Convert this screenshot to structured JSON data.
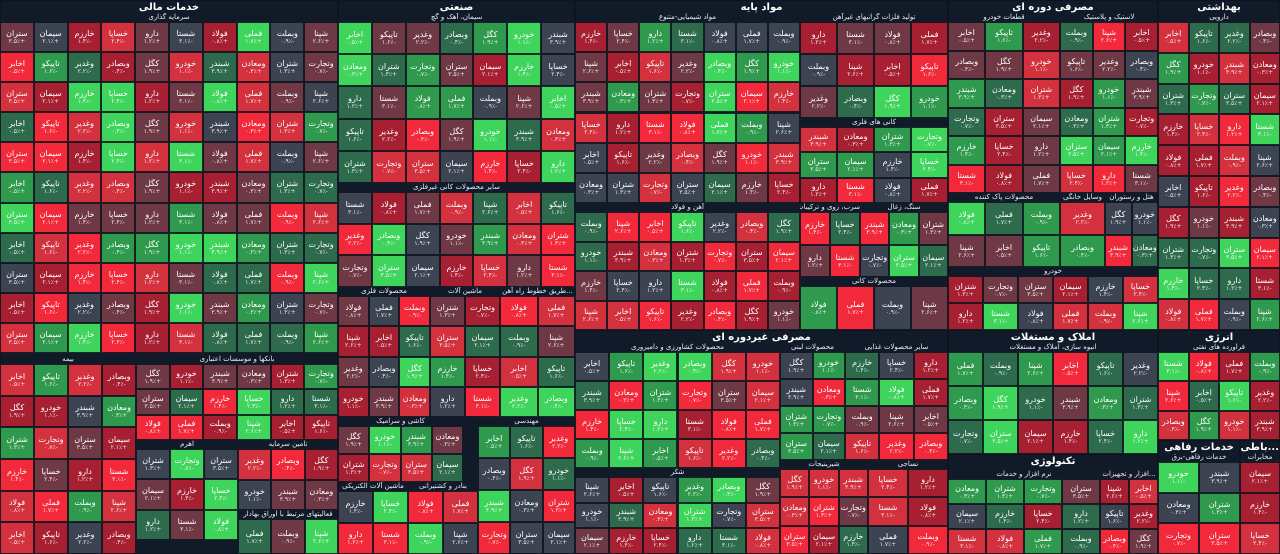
{
  "colors": {
    "dark_red": "#a62032",
    "red": "#d4313f",
    "bright_red": "#f2293a",
    "muted_red": "#6e3844",
    "neutral": "#3c4452",
    "muted_green": "#2d6b4c",
    "green": "#2f9a4d",
    "bright_green": "#3fd45c"
  },
  "sectors": [
    {
      "id": "khadamat-mali",
      "title": "خدمات مالی"
    },
    {
      "id": "sanati",
      "title": "صنعتی"
    },
    {
      "id": "mavad-payeh",
      "title": "مواد پایه"
    },
    {
      "id": "masrafi-dore",
      "title": "مصرفی دوره ای"
    },
    {
      "id": "behdashti",
      "title": "بهداشتی"
    },
    {
      "id": "masrafi-gheir",
      "title": "مصرفی غیردوره ای"
    },
    {
      "id": "amlak",
      "title": "املاک و مستغلات"
    },
    {
      "id": "energy",
      "title": "انرژی"
    },
    {
      "id": "tech",
      "title": "تکنولوژی"
    },
    {
      "id": "refahi",
      "title": "خدمات رفاهی"
    },
    {
      "id": "khadamat-mo",
      "title": "...باطی"
    }
  ],
  "subgroups": [
    {
      "id": "sarmaye-gozari",
      "label": "سرمایه گذاری"
    },
    {
      "id": "bimeh",
      "label": "بیمه"
    },
    {
      "id": "bank",
      "label": "بانکها و موسسات اعتباری"
    },
    {
      "id": "tamin-sarmaye",
      "label": "تامین سرمایه"
    },
    {
      "id": "ahrom",
      "label": "اهرم"
    },
    {
      "id": "oraq",
      "label": "فعالیتهای مرتبط با اوراق بهادار"
    },
    {
      "id": "siman",
      "label": "سیمان، آهک و گچ"
    },
    {
      "id": "kani-gheir",
      "label": "سایر محصولات کانی غیرفلزی"
    },
    {
      "id": "felezi",
      "label": "محصولات فلزی"
    },
    {
      "id": "mashin",
      "label": "ماشین آلات"
    },
    {
      "id": "tarigh",
      "label": "...طریق خطوط راه آهن"
    },
    {
      "id": "kashi",
      "label": "کاشی و سرامیک"
    },
    {
      "id": "bargh",
      "label": "ماشین آلات الکتریکی"
    },
    {
      "id": "bandar",
      "label": "بنادر و کشتیرانی"
    },
    {
      "id": "mohandesi",
      "label": "مهندسی"
    },
    {
      "id": "shimi",
      "label": "مواد شیمیایی-متنوع"
    },
    {
      "id": "tolid-felezat",
      "label": "تولید فلزات گرانبهای غیرآهن"
    },
    {
      "id": "kani-felezi",
      "label": "کانی های فلزی"
    },
    {
      "id": "ahan",
      "label": "آهن و فولاد"
    },
    {
      "id": "sang",
      "label": "سنگ، زغال"
    },
    {
      "id": "sorb",
      "label": "سرب، روی و ترکیبات آنها"
    },
    {
      "id": "kaneh",
      "label": "محصولات کانی"
    },
    {
      "id": "khodro",
      "label": "قطعات خودرو"
    },
    {
      "id": "lastik",
      "label": "لاستیک و پلاستیک"
    },
    {
      "id": "pak",
      "label": "محصولات پاک کننده"
    },
    {
      "id": "khanegi",
      "label": "وسایل خانگی"
    },
    {
      "id": "hotel",
      "label": "هتل و رستوران"
    },
    {
      "id": "khodro2",
      "label": "خودرو"
    },
    {
      "id": "daroei",
      "label": "دارویی"
    },
    {
      "id": "keshavarzi",
      "label": "محصولات کشاورزی و دامپروری"
    },
    {
      "id": "labani",
      "label": "محصولات لبنی"
    },
    {
      "id": "ghazaei",
      "label": "سایر محصولات غذایی"
    },
    {
      "id": "shirini",
      "label": "شیرینیجات"
    },
    {
      "id": "nasaji",
      "label": "نساجی"
    },
    {
      "id": "shekar",
      "label": "شکر"
    },
    {
      "id": "saakhtemani",
      "label": "انبوه سازی، املاک و مستغلات"
    },
    {
      "id": "pala",
      "label": "فراورده های نفتی"
    },
    {
      "id": "narm",
      "label": "نرم افزار و خدمات"
    },
    {
      "id": "sakht-afzar",
      "label": "...افزار و تجهیزات"
    },
    {
      "id": "refahi-sub",
      "label": "خدمات رفاهی-برق"
    },
    {
      "id": "mokhaberat",
      "label": "مخابرات"
    }
  ],
  "tiles": [
    {
      "id": "t1",
      "name": "ستران",
      "change": "+۳.۵٪",
      "color": "#2f9a4d"
    },
    {
      "id": "t2",
      "name": "سیمان",
      "change": "+۲.۱٪",
      "color": "#2d6b4c"
    },
    {
      "id": "t3",
      "name": "خارزم",
      "change": "-۱.۴٪",
      "color": "#a62032"
    },
    {
      "id": "t4",
      "name": "خساپا",
      "change": "-۲.۴٪",
      "color": "#d4313f"
    },
    {
      "id": "t5",
      "name": "دارو",
      "change": "+۱.۲٪",
      "color": "#2f9a4d"
    },
    {
      "id": "t6",
      "name": "شستا",
      "change": "-۳.۱٪",
      "color": "#f2293a"
    },
    {
      "id": "t7",
      "name": "فولاد",
      "change": "+۰.۸٪",
      "color": "#2d6b4c"
    },
    {
      "id": "t8",
      "name": "فملی",
      "change": "+۱.۷٪",
      "color": "#2f9a4d"
    },
    {
      "id": "t9",
      "name": "وبملت",
      "change": "-۰.۹٪",
      "color": "#6e3844"
    },
    {
      "id": "t10",
      "name": "شپنا",
      "change": "+۲.۶٪",
      "color": "#3fd45c"
    },
    {
      "id": "t11",
      "name": "اخابر",
      "change": "+۰.۵٪",
      "color": "#2d6b4c"
    },
    {
      "id": "t12",
      "name": "تاپیکو",
      "change": "-۱.۶٪",
      "color": "#a62032"
    },
    {
      "id": "t13",
      "name": "وغدیر",
      "change": "-۲.۲٪",
      "color": "#d4313f"
    },
    {
      "id": "t14",
      "name": "وبصادر",
      "change": "-۰.۴٪",
      "color": "#3c4452"
    },
    {
      "id": "t15",
      "name": "کگل",
      "change": "+۱.۹٪",
      "color": "#2f9a4d"
    },
    {
      "id": "t16",
      "name": "خودرو",
      "change": "-۱.۱٪",
      "color": "#a62032"
    },
    {
      "id": "t17",
      "name": "شبندر",
      "change": "+۳.۹٪",
      "color": "#3fd45c"
    },
    {
      "id": "t18",
      "name": "ومعادن",
      "change": "+۰.۳٪",
      "color": "#3c4452"
    },
    {
      "id": "t19",
      "name": "شتران",
      "change": "+۱.۳٪",
      "color": "#2d6b4c"
    },
    {
      "id": "t20",
      "name": "وتجارت",
      "change": "-۰.۷٪",
      "color": "#6e3844"
    }
  ]
}
